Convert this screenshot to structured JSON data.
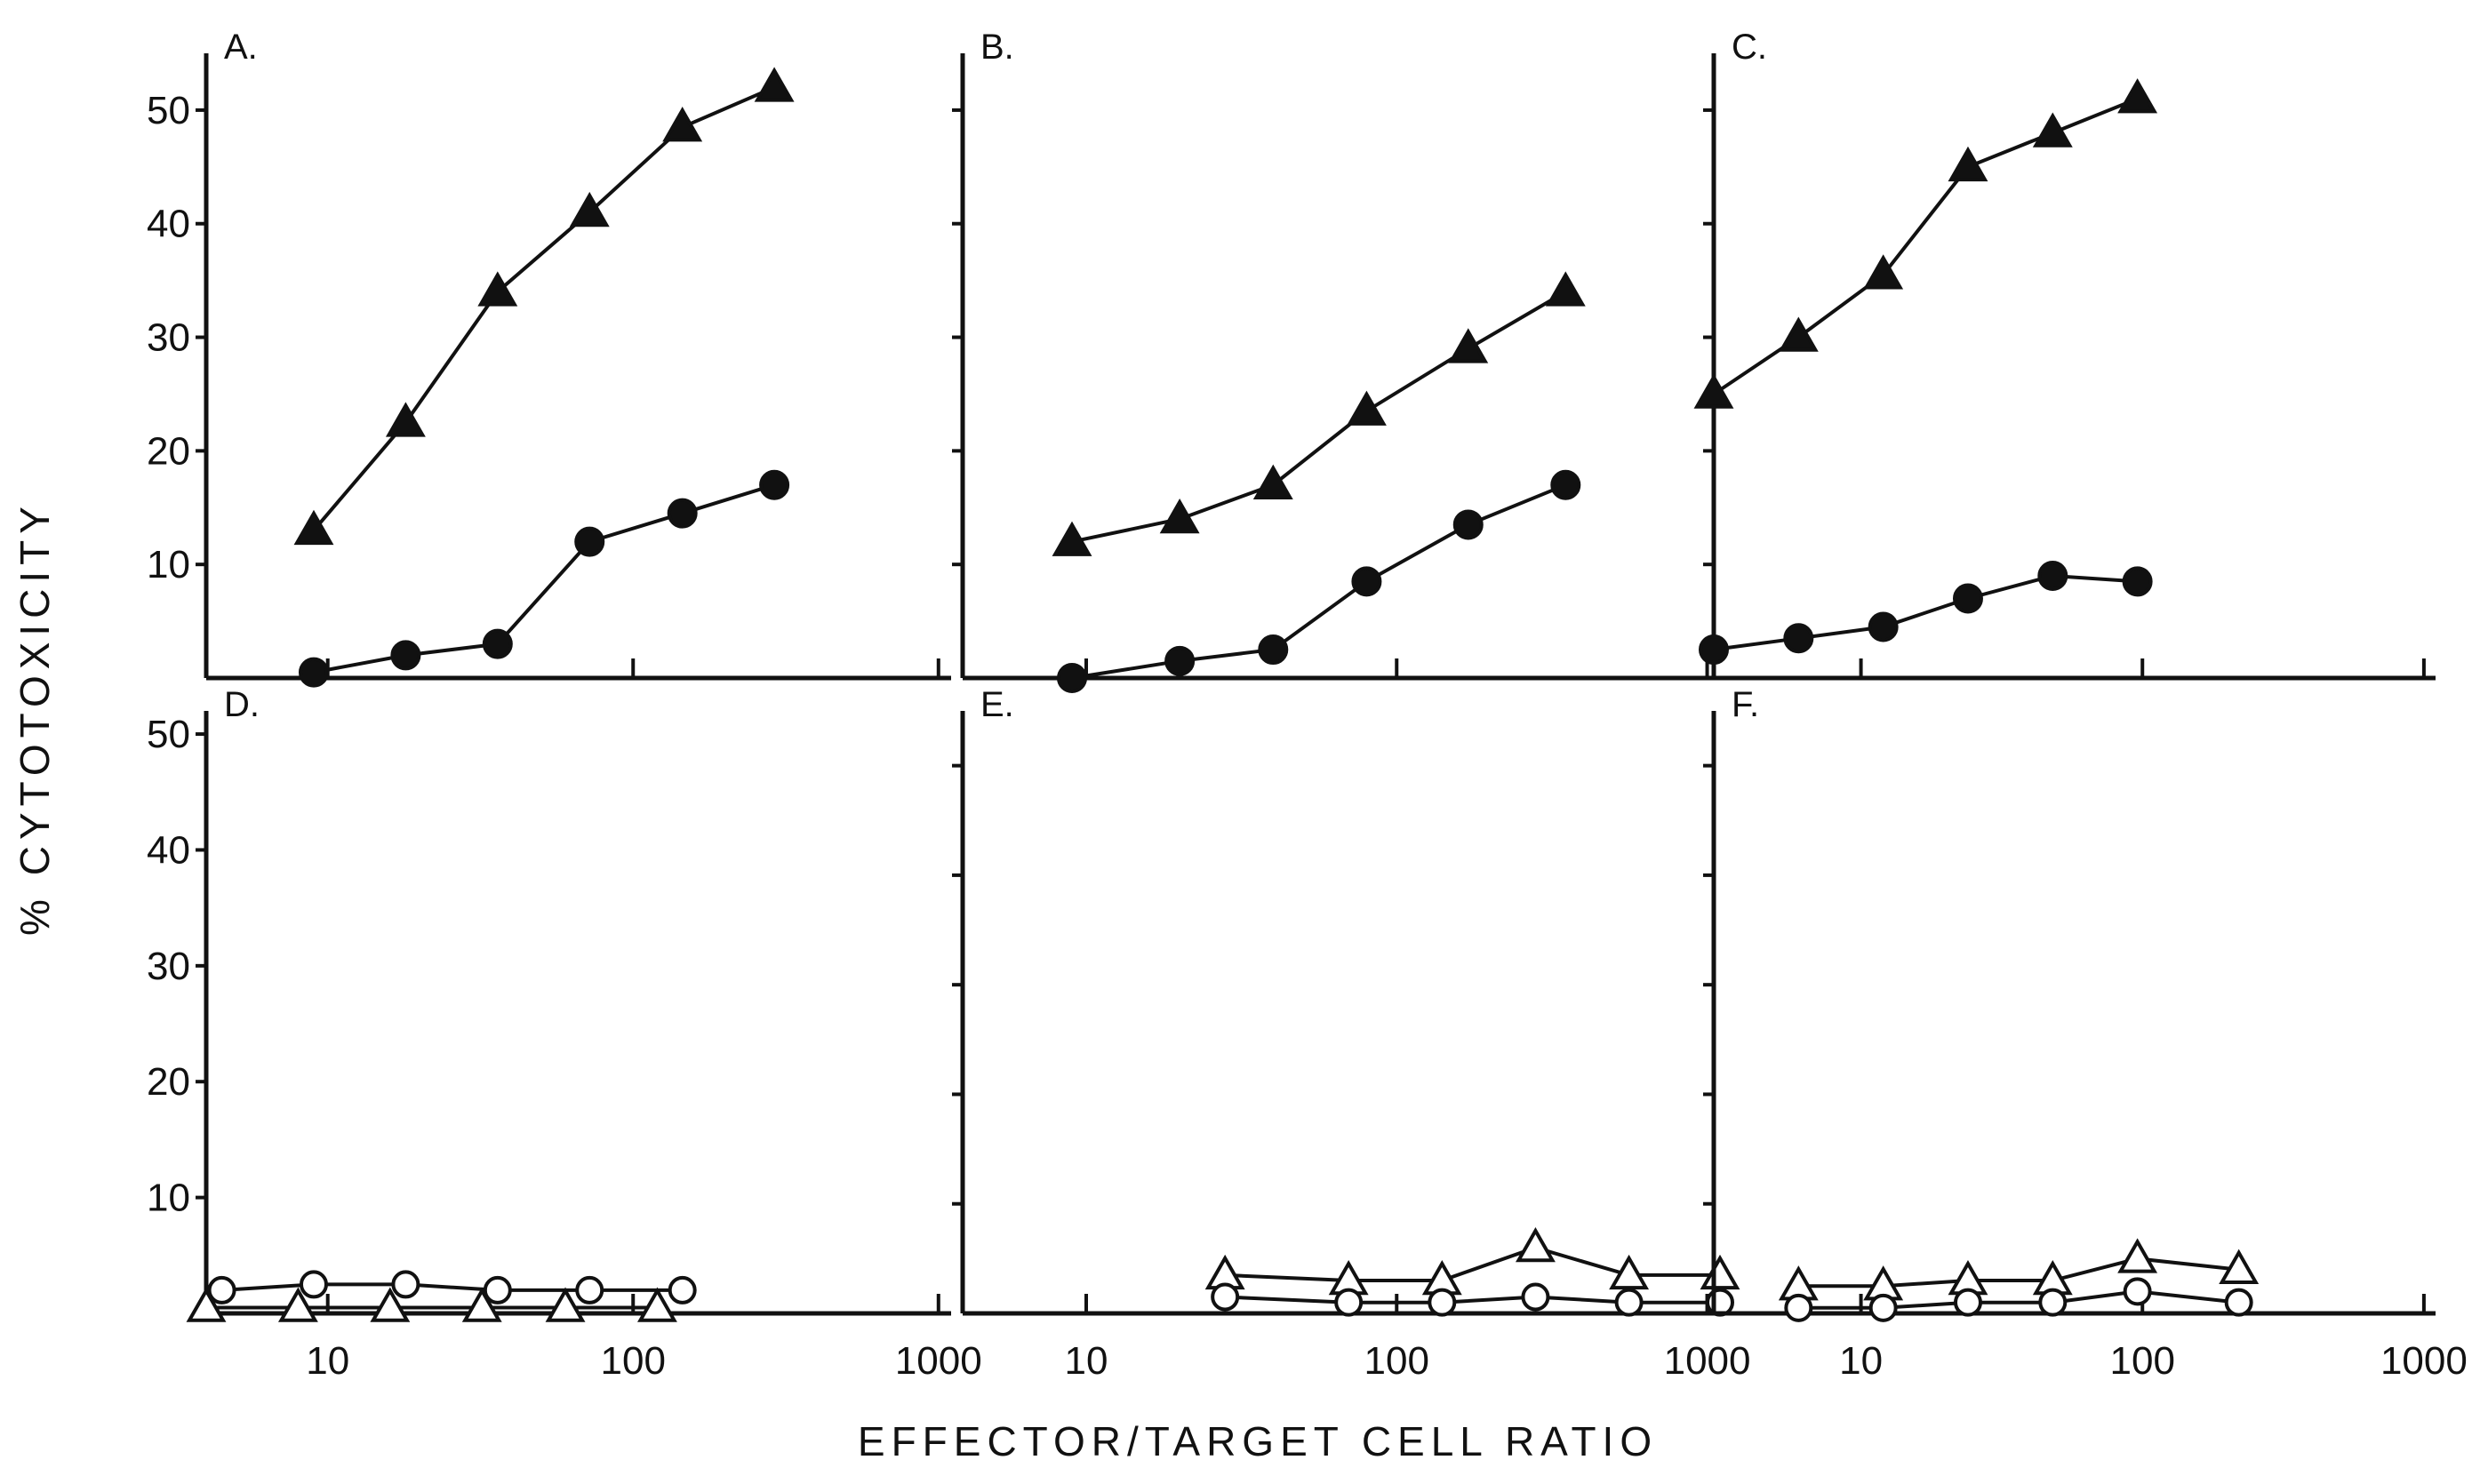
{
  "chart_data": [
    {
      "type": "line",
      "panel_label": "A.",
      "xscale": "log",
      "xlim": [
        4,
        1100
      ],
      "ylim": [
        0,
        55
      ],
      "y_ticks": [
        10,
        20,
        30,
        40,
        50
      ],
      "y_tick_labels": [
        "10",
        "20",
        "30",
        "40",
        "50"
      ],
      "x_ticks": [
        10,
        100,
        1000
      ],
      "x_tick_labels": [
        "",
        "",
        ""
      ],
      "series": [
        {
          "marker": "filled-triangle",
          "x": [
            9,
            18,
            36,
            72,
            145,
            290
          ],
          "y": [
            13,
            22.5,
            34,
            41,
            48.5,
            52
          ]
        },
        {
          "marker": "filled-circle",
          "x": [
            9,
            18,
            36,
            72,
            145,
            290
          ],
          "y": [
            0.5,
            2,
            3,
            12,
            14.5,
            17
          ]
        }
      ]
    },
    {
      "type": "line",
      "panel_label": "B.",
      "xscale": "log",
      "xlim": [
        4,
        1100
      ],
      "ylim": [
        0,
        55
      ],
      "y_ticks": [
        10,
        20,
        30,
        40,
        50
      ],
      "y_tick_labels": [
        "",
        "",
        "",
        "",
        ""
      ],
      "x_ticks": [
        10,
        100,
        1000
      ],
      "x_tick_labels": [
        "",
        "",
        ""
      ],
      "series": [
        {
          "marker": "filled-triangle",
          "x": [
            9,
            20,
            40,
            80,
            170,
            350
          ],
          "y": [
            12,
            14,
            17,
            23.5,
            29,
            34
          ]
        },
        {
          "marker": "filled-circle",
          "x": [
            9,
            20,
            40,
            80,
            170,
            350
          ],
          "y": [
            0,
            1.5,
            2.5,
            8.5,
            13.5,
            17
          ]
        }
      ]
    },
    {
      "type": "line",
      "panel_label": "C.",
      "xscale": "log",
      "xlim": [
        3,
        1100
      ],
      "ylim": [
        0,
        55
      ],
      "y_ticks": [
        10,
        20,
        30,
        40,
        50
      ],
      "y_tick_labels": [
        "",
        "",
        "",
        "",
        ""
      ],
      "x_ticks": [
        10,
        100,
        1000
      ],
      "x_tick_labels": [
        "",
        "",
        ""
      ],
      "series": [
        {
          "marker": "filled-triangle",
          "x": [
            3,
            6,
            12,
            24,
            48,
            96
          ],
          "y": [
            25,
            30,
            35.5,
            45,
            48,
            51
          ]
        },
        {
          "marker": "filled-circle",
          "x": [
            3,
            6,
            12,
            24,
            48,
            96
          ],
          "y": [
            2.5,
            3.5,
            4.5,
            7,
            9,
            8.5
          ]
        }
      ]
    },
    {
      "type": "line",
      "panel_label": "D.",
      "xscale": "log",
      "xlim": [
        4,
        1100
      ],
      "ylim": [
        0,
        52
      ],
      "y_ticks": [
        10,
        20,
        30,
        40,
        50
      ],
      "y_tick_labels": [
        "10",
        "20",
        "30",
        "40",
        "50"
      ],
      "x_ticks": [
        10,
        100,
        1000
      ],
      "x_tick_labels": [
        "10",
        "100",
        "1000"
      ],
      "series": [
        {
          "marker": "open-circle",
          "x": [
            4.5,
            9,
            18,
            36,
            72,
            145
          ],
          "y": [
            2,
            2.5,
            2.5,
            2,
            2,
            2
          ]
        },
        {
          "marker": "open-triangle",
          "x": [
            4,
            8,
            16,
            32,
            60,
            120
          ],
          "y": [
            0.5,
            0.5,
            0.5,
            0.5,
            0.5,
            0.5
          ]
        }
      ]
    },
    {
      "type": "line",
      "panel_label": "E.",
      "xscale": "log",
      "xlim": [
        4,
        1100
      ],
      "ylim": [
        0,
        55
      ],
      "y_ticks": [
        10,
        20,
        30,
        40,
        50
      ],
      "y_tick_labels": [
        "",
        "",
        "",
        "",
        ""
      ],
      "x_ticks": [
        10,
        100,
        1000
      ],
      "x_tick_labels": [
        "10",
        "100",
        "1000"
      ],
      "series": [
        {
          "marker": "open-triangle",
          "x": [
            28,
            70,
            140,
            280,
            560,
            1100
          ],
          "y": [
            3.5,
            3,
            3,
            6,
            3.5,
            3.5
          ]
        },
        {
          "marker": "open-circle",
          "x": [
            28,
            70,
            140,
            280,
            560,
            1100
          ],
          "y": [
            1.5,
            1,
            1,
            1.5,
            1,
            1
          ]
        }
      ]
    },
    {
      "type": "line",
      "panel_label": "F.",
      "xscale": "log",
      "xlim": [
        3,
        1100
      ],
      "ylim": [
        0,
        55
      ],
      "y_ticks": [
        10,
        20,
        30,
        40,
        50
      ],
      "y_tick_labels": [
        "",
        "",
        "",
        "",
        ""
      ],
      "x_ticks": [
        10,
        100,
        1000
      ],
      "x_tick_labels": [
        "10",
        "100",
        "1000"
      ],
      "series": [
        {
          "marker": "open-triangle",
          "x": [
            6,
            12,
            24,
            48,
            96,
            220
          ],
          "y": [
            2.5,
            2.5,
            3,
            3,
            5,
            4
          ]
        },
        {
          "marker": "open-circle",
          "x": [
            6,
            12,
            24,
            48,
            96,
            220
          ],
          "y": [
            0.5,
            0.5,
            1,
            1,
            2,
            1
          ]
        }
      ]
    }
  ],
  "axis_titles": {
    "y": "% CYTOTOXICITY",
    "x": "EFFECTOR/TARGET CELL RATIO"
  }
}
